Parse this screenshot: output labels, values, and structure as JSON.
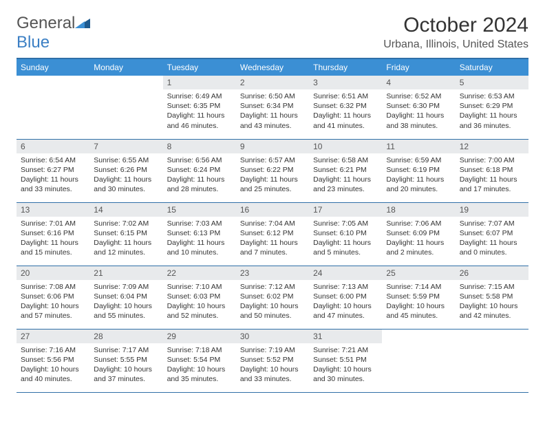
{
  "brand": {
    "part1": "General",
    "part2": "Blue"
  },
  "title": "October 2024",
  "location": "Urbana, Illinois, United States",
  "colors": {
    "header_bg": "#3b8fd4",
    "header_text": "#ffffff",
    "border": "#2f6fa7",
    "daynum_bg": "#e8eaec",
    "text": "#333333",
    "brand_gray": "#555555",
    "brand_blue": "#3b7fc4",
    "background": "#ffffff"
  },
  "typography": {
    "title_fontsize": 30,
    "location_fontsize": 16,
    "header_fontsize": 12,
    "daynum_fontsize": 12,
    "body_fontsize": 10.5
  },
  "weekdays": [
    "Sunday",
    "Monday",
    "Tuesday",
    "Wednesday",
    "Thursday",
    "Friday",
    "Saturday"
  ],
  "weeks": [
    [
      null,
      null,
      {
        "n": "1",
        "sr": "6:49 AM",
        "ss": "6:35 PM",
        "dl": "11 hours and 46 minutes."
      },
      {
        "n": "2",
        "sr": "6:50 AM",
        "ss": "6:34 PM",
        "dl": "11 hours and 43 minutes."
      },
      {
        "n": "3",
        "sr": "6:51 AM",
        "ss": "6:32 PM",
        "dl": "11 hours and 41 minutes."
      },
      {
        "n": "4",
        "sr": "6:52 AM",
        "ss": "6:30 PM",
        "dl": "11 hours and 38 minutes."
      },
      {
        "n": "5",
        "sr": "6:53 AM",
        "ss": "6:29 PM",
        "dl": "11 hours and 36 minutes."
      }
    ],
    [
      {
        "n": "6",
        "sr": "6:54 AM",
        "ss": "6:27 PM",
        "dl": "11 hours and 33 minutes."
      },
      {
        "n": "7",
        "sr": "6:55 AM",
        "ss": "6:26 PM",
        "dl": "11 hours and 30 minutes."
      },
      {
        "n": "8",
        "sr": "6:56 AM",
        "ss": "6:24 PM",
        "dl": "11 hours and 28 minutes."
      },
      {
        "n": "9",
        "sr": "6:57 AM",
        "ss": "6:22 PM",
        "dl": "11 hours and 25 minutes."
      },
      {
        "n": "10",
        "sr": "6:58 AM",
        "ss": "6:21 PM",
        "dl": "11 hours and 23 minutes."
      },
      {
        "n": "11",
        "sr": "6:59 AM",
        "ss": "6:19 PM",
        "dl": "11 hours and 20 minutes."
      },
      {
        "n": "12",
        "sr": "7:00 AM",
        "ss": "6:18 PM",
        "dl": "11 hours and 17 minutes."
      }
    ],
    [
      {
        "n": "13",
        "sr": "7:01 AM",
        "ss": "6:16 PM",
        "dl": "11 hours and 15 minutes."
      },
      {
        "n": "14",
        "sr": "7:02 AM",
        "ss": "6:15 PM",
        "dl": "11 hours and 12 minutes."
      },
      {
        "n": "15",
        "sr": "7:03 AM",
        "ss": "6:13 PM",
        "dl": "11 hours and 10 minutes."
      },
      {
        "n": "16",
        "sr": "7:04 AM",
        "ss": "6:12 PM",
        "dl": "11 hours and 7 minutes."
      },
      {
        "n": "17",
        "sr": "7:05 AM",
        "ss": "6:10 PM",
        "dl": "11 hours and 5 minutes."
      },
      {
        "n": "18",
        "sr": "7:06 AM",
        "ss": "6:09 PM",
        "dl": "11 hours and 2 minutes."
      },
      {
        "n": "19",
        "sr": "7:07 AM",
        "ss": "6:07 PM",
        "dl": "11 hours and 0 minutes."
      }
    ],
    [
      {
        "n": "20",
        "sr": "7:08 AM",
        "ss": "6:06 PM",
        "dl": "10 hours and 57 minutes."
      },
      {
        "n": "21",
        "sr": "7:09 AM",
        "ss": "6:04 PM",
        "dl": "10 hours and 55 minutes."
      },
      {
        "n": "22",
        "sr": "7:10 AM",
        "ss": "6:03 PM",
        "dl": "10 hours and 52 minutes."
      },
      {
        "n": "23",
        "sr": "7:12 AM",
        "ss": "6:02 PM",
        "dl": "10 hours and 50 minutes."
      },
      {
        "n": "24",
        "sr": "7:13 AM",
        "ss": "6:00 PM",
        "dl": "10 hours and 47 minutes."
      },
      {
        "n": "25",
        "sr": "7:14 AM",
        "ss": "5:59 PM",
        "dl": "10 hours and 45 minutes."
      },
      {
        "n": "26",
        "sr": "7:15 AM",
        "ss": "5:58 PM",
        "dl": "10 hours and 42 minutes."
      }
    ],
    [
      {
        "n": "27",
        "sr": "7:16 AM",
        "ss": "5:56 PM",
        "dl": "10 hours and 40 minutes."
      },
      {
        "n": "28",
        "sr": "7:17 AM",
        "ss": "5:55 PM",
        "dl": "10 hours and 37 minutes."
      },
      {
        "n": "29",
        "sr": "7:18 AM",
        "ss": "5:54 PM",
        "dl": "10 hours and 35 minutes."
      },
      {
        "n": "30",
        "sr": "7:19 AM",
        "ss": "5:52 PM",
        "dl": "10 hours and 33 minutes."
      },
      {
        "n": "31",
        "sr": "7:21 AM",
        "ss": "5:51 PM",
        "dl": "10 hours and 30 minutes."
      },
      null,
      null
    ]
  ],
  "labels": {
    "sunrise": "Sunrise:",
    "sunset": "Sunset:",
    "daylight": "Daylight:"
  }
}
